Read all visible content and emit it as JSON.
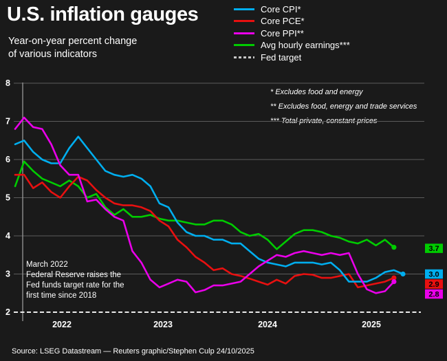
{
  "title": "U.S. inflation gauges",
  "subtitle_line1": "Year-on-year percent change",
  "subtitle_line2": "of various indicators",
  "legend": [
    {
      "label": "Core CPI*",
      "color": "#00aeef",
      "dashed": false
    },
    {
      "label": "Core PCE*",
      "color": "#e81010",
      "dashed": false
    },
    {
      "label": "Core PPI**",
      "color": "#ea00ea",
      "dashed": false
    },
    {
      "label": "Avg hourly earnings***",
      "color": "#00cc00",
      "dashed": false
    },
    {
      "label": "Fed target",
      "color": "#c8c8c8",
      "dashed": true
    }
  ],
  "footnotes": [
    "* Excludes food and energy",
    "** Excludes food, energy and trade services",
    "*** Total private, constant prices"
  ],
  "annotation_lines": [
    "March 2022",
    "Federal Reserve raises the",
    "Fed funds target rate for the",
    "first time since 2018"
  ],
  "source": "Source: LSEG Datastream — Reuters graphic/Stephen Culp 24/10/2025",
  "chart_data": {
    "type": "line",
    "x_frequency": "monthly",
    "x_start_month": "2022-02",
    "x_tick_labels": [
      "2022",
      "2023",
      "2024",
      "2025"
    ],
    "y_ticks": [
      2,
      3,
      4,
      5,
      6,
      7,
      8
    ],
    "ylim": [
      2,
      8
    ],
    "grid": true,
    "legend_position": "top-right",
    "fed_target": {
      "label": "Fed target",
      "value": 2
    },
    "annotation_event_month": "2022-03",
    "series": [
      {
        "name": "Core CPI*",
        "color": "#00aeef",
        "end_label": "3.0",
        "values": [
          6.4,
          6.5,
          6.2,
          6.0,
          5.9,
          5.9,
          6.3,
          6.6,
          6.3,
          6.0,
          5.7,
          5.6,
          5.55,
          5.6,
          5.5,
          5.3,
          4.85,
          4.75,
          4.35,
          4.1,
          4.0,
          4.0,
          3.9,
          3.9,
          3.8,
          3.8,
          3.6,
          3.4,
          3.3,
          3.25,
          3.2,
          3.3,
          3.3,
          3.3,
          3.25,
          3.3,
          3.1,
          2.8,
          2.8,
          2.8,
          2.9,
          3.05,
          3.1,
          3.0
        ]
      },
      {
        "name": "Core PCE*",
        "color": "#e81010",
        "end_label": "2.9",
        "values": [
          5.6,
          5.6,
          5.25,
          5.4,
          5.15,
          5.0,
          5.3,
          5.55,
          5.45,
          5.2,
          5.0,
          4.85,
          4.8,
          4.8,
          4.75,
          4.65,
          4.4,
          4.25,
          3.9,
          3.7,
          3.45,
          3.3,
          3.1,
          3.15,
          3.0,
          2.95,
          2.88,
          2.8,
          2.72,
          2.85,
          2.75,
          2.95,
          3.0,
          2.98,
          2.9,
          2.9,
          2.95,
          3.0,
          2.65,
          2.7,
          2.75,
          2.8,
          2.9
        ]
      },
      {
        "name": "Core PPI**",
        "color": "#ea00ea",
        "end_label": "2.8",
        "values": [
          6.8,
          7.1,
          6.85,
          6.8,
          6.4,
          5.85,
          5.6,
          5.6,
          4.9,
          4.95,
          4.7,
          4.5,
          4.4,
          3.6,
          3.3,
          2.85,
          2.65,
          2.75,
          2.85,
          2.8,
          2.52,
          2.58,
          2.7,
          2.7,
          2.75,
          2.8,
          3.0,
          3.2,
          3.35,
          3.5,
          3.45,
          3.55,
          3.6,
          3.55,
          3.5,
          3.55,
          3.5,
          3.55,
          3.0,
          2.6,
          2.5,
          2.55,
          2.8
        ]
      },
      {
        "name": "Avg hourly earnings***",
        "color": "#00cc00",
        "end_label": "3.7",
        "values": [
          5.3,
          5.95,
          5.7,
          5.5,
          5.4,
          5.3,
          5.45,
          5.3,
          5.0,
          5.1,
          4.75,
          4.55,
          4.7,
          4.5,
          4.5,
          4.55,
          4.45,
          4.4,
          4.4,
          4.35,
          4.3,
          4.3,
          4.4,
          4.4,
          4.3,
          4.1,
          4.0,
          4.05,
          3.9,
          3.65,
          3.85,
          4.05,
          4.15,
          4.15,
          4.1,
          4.0,
          3.95,
          3.85,
          3.8,
          3.9,
          3.75,
          3.9,
          3.7
        ]
      }
    ]
  }
}
